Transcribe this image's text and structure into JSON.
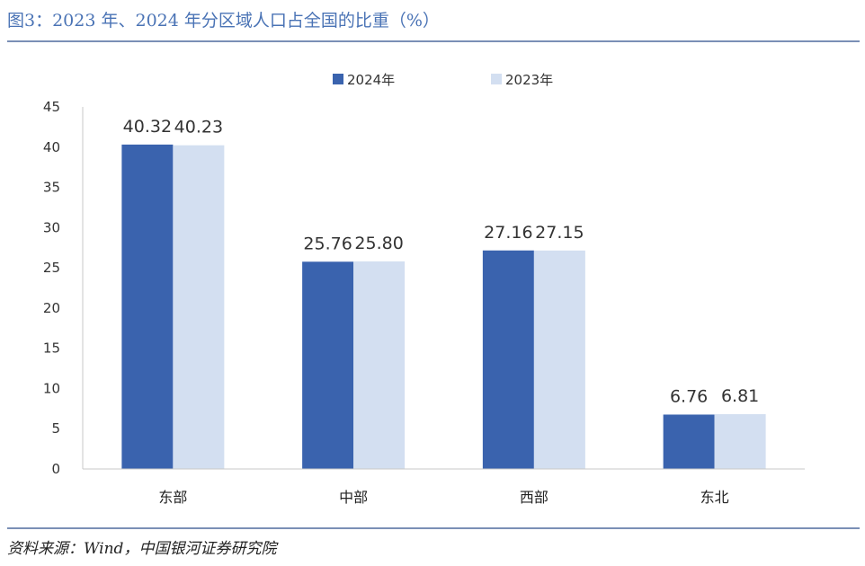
{
  "figure": {
    "title": "图3：2023 年、2024 年分区域人口占全国的比重（%）",
    "source": "资料来源：Wind，中国银河证券研究院"
  },
  "colors": {
    "series_2024": "#3a63ae",
    "series_2023": "#d3dff1",
    "rule": "#7a8fb6",
    "title": "#4a73b5"
  },
  "chart_data": {
    "type": "bar",
    "title": "",
    "xlabel": "",
    "ylabel": "",
    "categories": [
      "东部",
      "中部",
      "西部",
      "东北"
    ],
    "series": [
      {
        "name": "2024年",
        "values": [
          40.32,
          25.76,
          27.16,
          6.76
        ]
      },
      {
        "name": "2023年",
        "values": [
          40.23,
          25.8,
          27.15,
          6.81
        ]
      }
    ],
    "value_labels": [
      [
        "40.32",
        "25.76",
        "27.16",
        "6.76"
      ],
      [
        "40.23",
        "25.80",
        "27.15",
        "6.81"
      ]
    ],
    "ylim": [
      0,
      45
    ],
    "yticks": [
      "0",
      "5",
      "10",
      "15",
      "20",
      "25",
      "30",
      "35",
      "40",
      "45"
    ],
    "grid": false,
    "legend": "top-center"
  }
}
